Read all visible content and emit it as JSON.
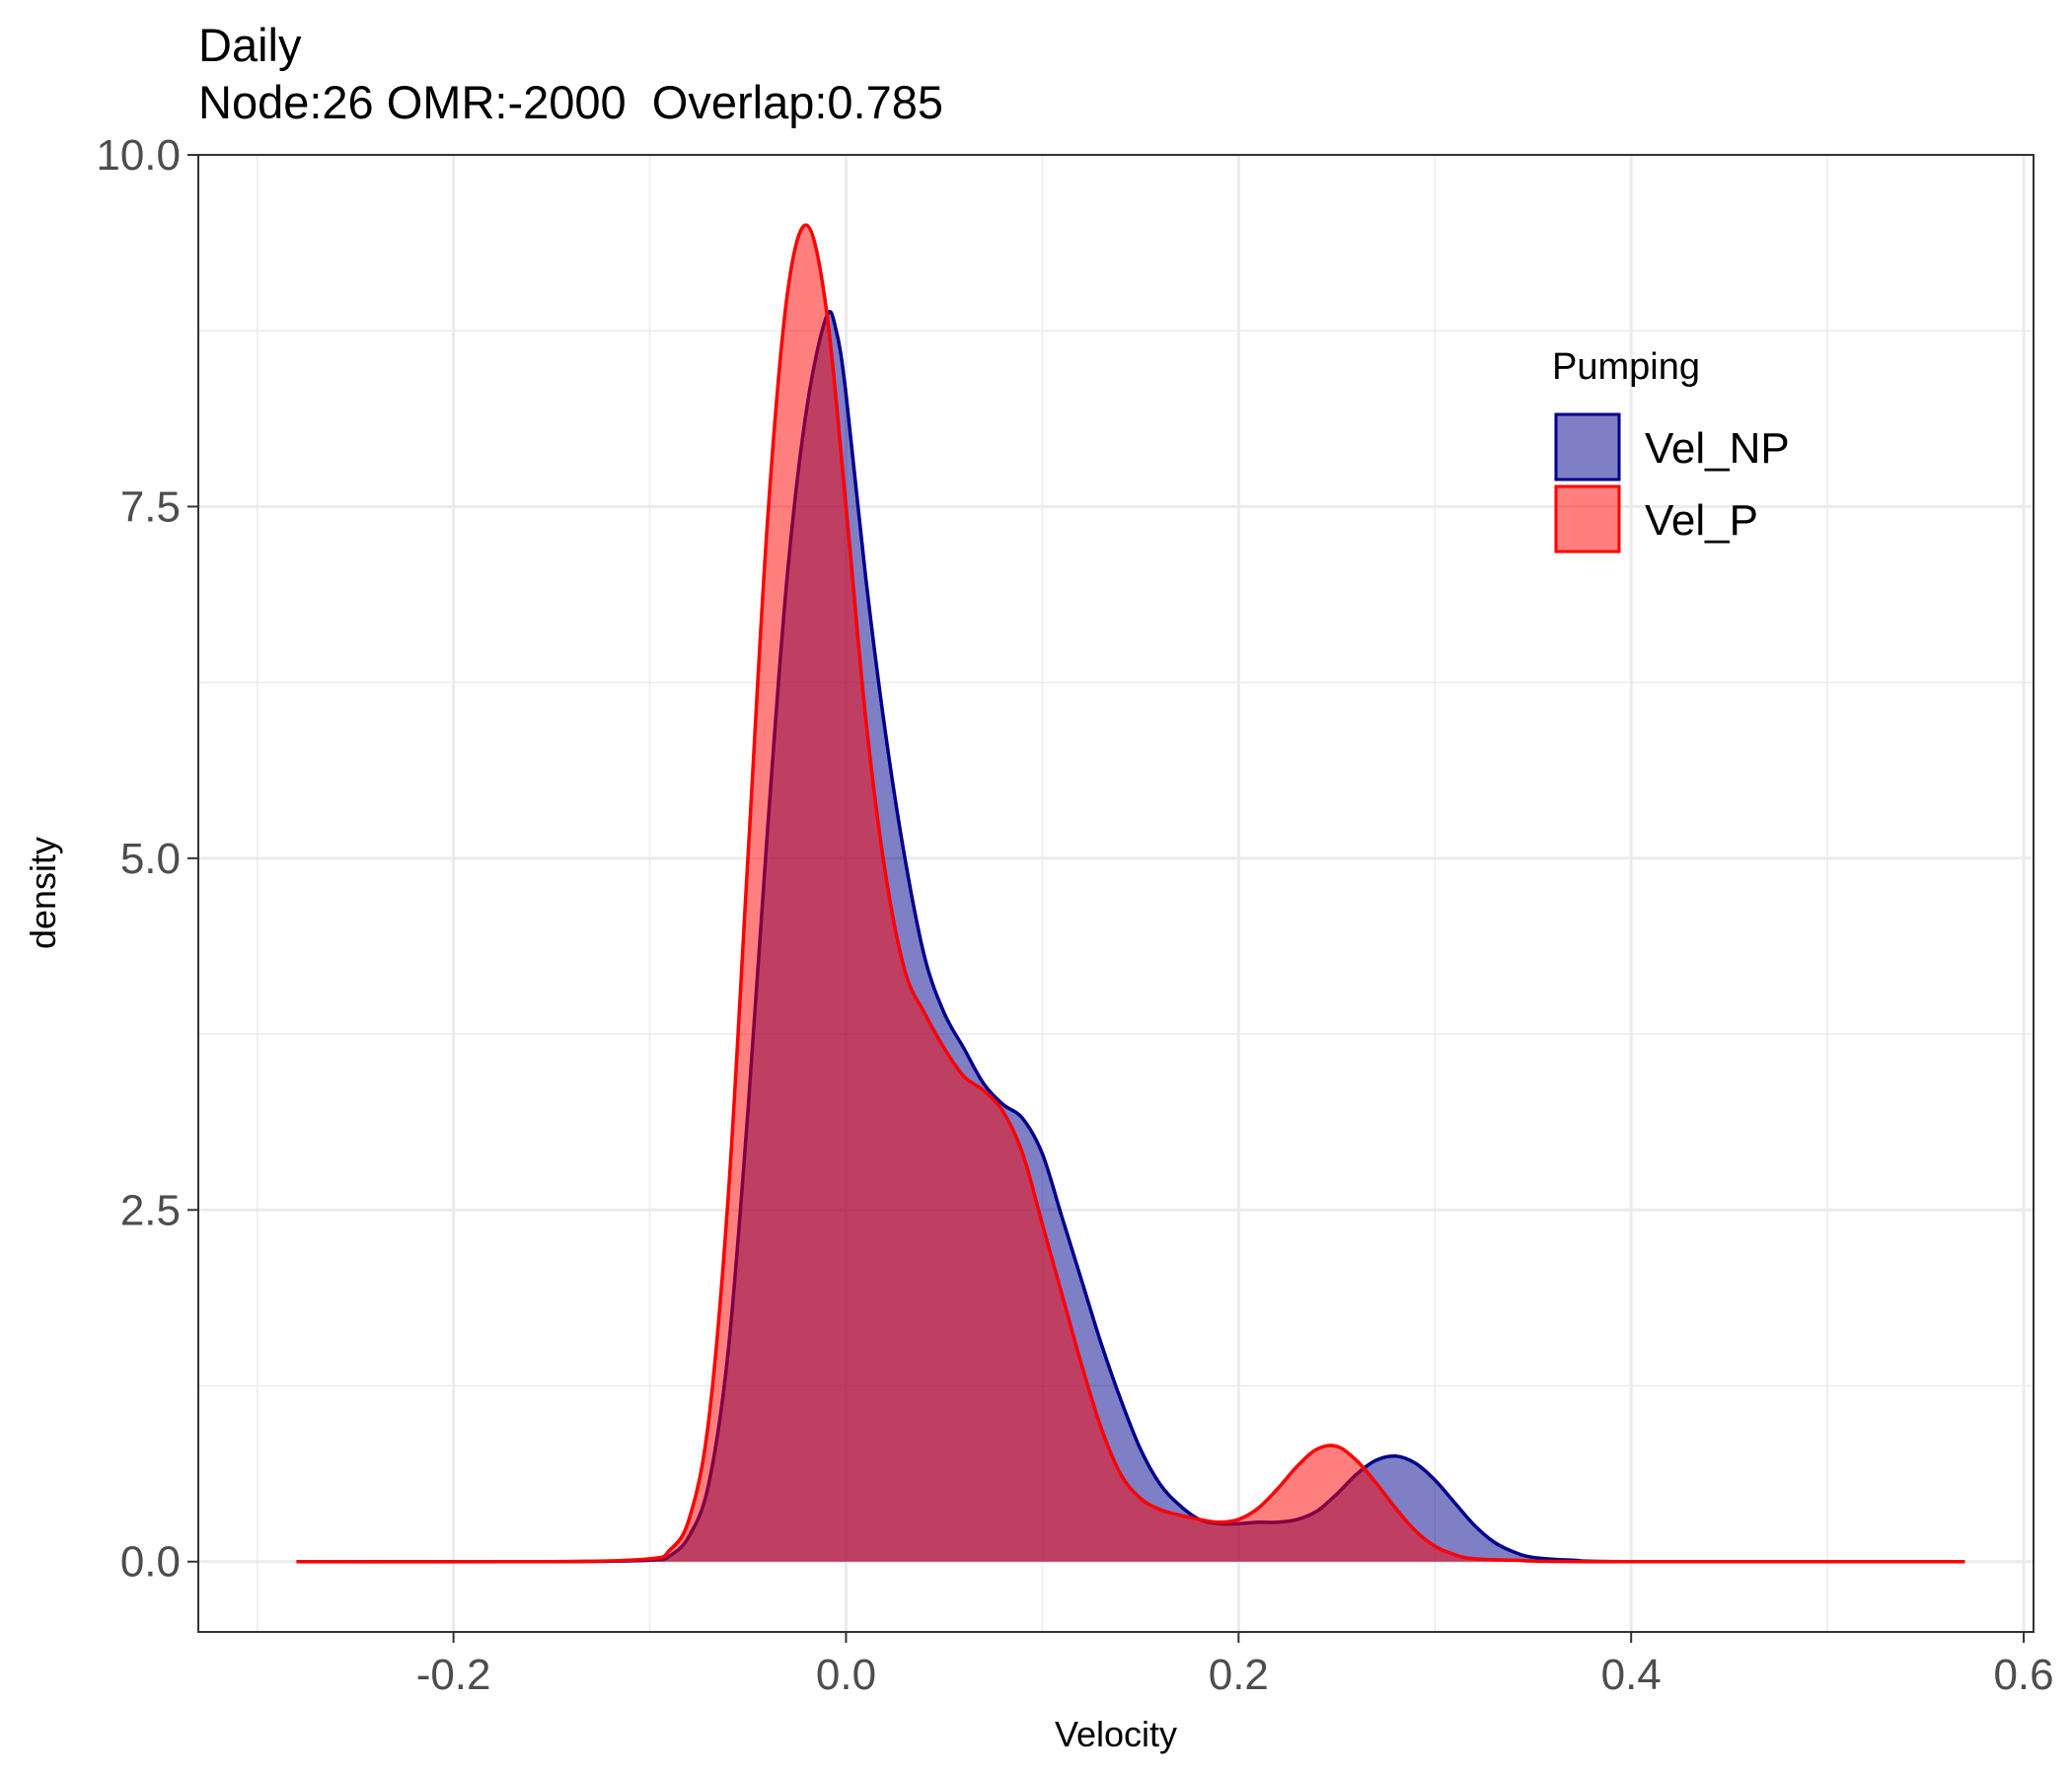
{
  "chart_data": {
    "type": "area",
    "title": "Daily",
    "subtitle": "Node:26 OMR:-2000  Overlap:0.785",
    "xlabel": "Velocity",
    "ylabel": "density",
    "xlim": [
      -0.33,
      0.605
    ],
    "ylim": [
      -0.5,
      10.0
    ],
    "x_ticks": [
      -0.2,
      0.0,
      0.2,
      0.4,
      0.6
    ],
    "x_tick_labels": [
      "-0.2",
      "0.0",
      "0.2",
      "0.4",
      "0.6"
    ],
    "y_ticks": [
      0.0,
      2.5,
      5.0,
      7.5,
      10.0
    ],
    "y_tick_labels": [
      "0.0",
      "2.5",
      "5.0",
      "7.5",
      "10.0"
    ],
    "grid": true,
    "legend": {
      "title": "Pumping",
      "position": "top-right"
    },
    "series": [
      {
        "name": "Vel_NP",
        "stroke": "#00008b",
        "fill": "#00008b",
        "fill_opacity": 0.5,
        "points": [
          [
            -0.28,
            0.0
          ],
          [
            -0.15,
            0.0
          ],
          [
            -0.1,
            0.01
          ],
          [
            -0.09,
            0.04
          ],
          [
            -0.08,
            0.18
          ],
          [
            -0.07,
            0.55
          ],
          [
            -0.06,
            1.5
          ],
          [
            -0.05,
            3.2
          ],
          [
            -0.04,
            5.2
          ],
          [
            -0.03,
            7.0
          ],
          [
            -0.02,
            8.2
          ],
          [
            -0.01,
            8.85
          ],
          [
            -0.005,
            8.75
          ],
          [
            0.0,
            8.3
          ],
          [
            0.01,
            7.0
          ],
          [
            0.02,
            5.9
          ],
          [
            0.03,
            5.0
          ],
          [
            0.04,
            4.3
          ],
          [
            0.05,
            3.9
          ],
          [
            0.06,
            3.65
          ],
          [
            0.07,
            3.4
          ],
          [
            0.08,
            3.25
          ],
          [
            0.09,
            3.15
          ],
          [
            0.1,
            2.9
          ],
          [
            0.11,
            2.45
          ],
          [
            0.12,
            2.0
          ],
          [
            0.13,
            1.55
          ],
          [
            0.14,
            1.15
          ],
          [
            0.15,
            0.8
          ],
          [
            0.16,
            0.55
          ],
          [
            0.17,
            0.4
          ],
          [
            0.18,
            0.3
          ],
          [
            0.19,
            0.27
          ],
          [
            0.2,
            0.27
          ],
          [
            0.21,
            0.28
          ],
          [
            0.22,
            0.28
          ],
          [
            0.23,
            0.3
          ],
          [
            0.24,
            0.36
          ],
          [
            0.25,
            0.48
          ],
          [
            0.26,
            0.62
          ],
          [
            0.27,
            0.72
          ],
          [
            0.28,
            0.75
          ],
          [
            0.29,
            0.7
          ],
          [
            0.3,
            0.58
          ],
          [
            0.31,
            0.42
          ],
          [
            0.32,
            0.26
          ],
          [
            0.33,
            0.14
          ],
          [
            0.34,
            0.07
          ],
          [
            0.35,
            0.03
          ],
          [
            0.37,
            0.01
          ],
          [
            0.4,
            0.0
          ],
          [
            0.57,
            0.0
          ]
        ]
      },
      {
        "name": "Vel_P",
        "stroke": "#ff0000",
        "fill": "#ff0000",
        "fill_opacity": 0.5,
        "points": [
          [
            -0.28,
            0.0
          ],
          [
            -0.15,
            0.0
          ],
          [
            -0.1,
            0.02
          ],
          [
            -0.09,
            0.08
          ],
          [
            -0.08,
            0.3
          ],
          [
            -0.07,
            1.0
          ],
          [
            -0.06,
            2.6
          ],
          [
            -0.05,
            5.0
          ],
          [
            -0.04,
            7.4
          ],
          [
            -0.03,
            9.0
          ],
          [
            -0.02,
            9.5
          ],
          [
            -0.01,
            8.9
          ],
          [
            0.0,
            7.5
          ],
          [
            0.01,
            6.0
          ],
          [
            0.02,
            4.9
          ],
          [
            0.03,
            4.2
          ],
          [
            0.04,
            3.9
          ],
          [
            0.05,
            3.65
          ],
          [
            0.06,
            3.45
          ],
          [
            0.07,
            3.35
          ],
          [
            0.08,
            3.2
          ],
          [
            0.09,
            2.9
          ],
          [
            0.1,
            2.4
          ],
          [
            0.11,
            1.9
          ],
          [
            0.12,
            1.4
          ],
          [
            0.13,
            0.95
          ],
          [
            0.14,
            0.62
          ],
          [
            0.15,
            0.45
          ],
          [
            0.16,
            0.37
          ],
          [
            0.17,
            0.33
          ],
          [
            0.18,
            0.3
          ],
          [
            0.19,
            0.28
          ],
          [
            0.2,
            0.3
          ],
          [
            0.21,
            0.38
          ],
          [
            0.22,
            0.52
          ],
          [
            0.23,
            0.68
          ],
          [
            0.24,
            0.8
          ],
          [
            0.25,
            0.82
          ],
          [
            0.26,
            0.72
          ],
          [
            0.27,
            0.56
          ],
          [
            0.28,
            0.38
          ],
          [
            0.29,
            0.22
          ],
          [
            0.3,
            0.11
          ],
          [
            0.31,
            0.05
          ],
          [
            0.32,
            0.02
          ],
          [
            0.34,
            0.01
          ],
          [
            0.38,
            0.0
          ],
          [
            0.57,
            0.0
          ]
        ]
      }
    ]
  }
}
